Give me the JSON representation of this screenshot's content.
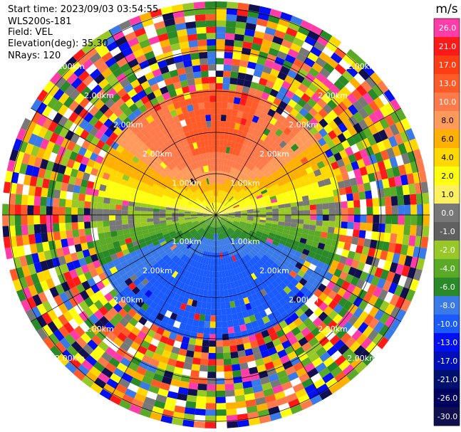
{
  "header": {
    "start_time": "Start time: 2023/09/03 03:54:55",
    "instrument": "WLS200s-181",
    "field": "Field: VEL",
    "elevation": "Elevation(deg): 35.30",
    "nrays": "NRays: 120"
  },
  "colorbar": {
    "unit": "m/s",
    "ticks": [
      "26.0",
      "21.0",
      "17.0",
      "13.0",
      "10.0",
      "8.0",
      "6.0",
      "4.0",
      "2.0",
      "1.0",
      "0.0",
      "-1.0",
      "-2.0",
      "-4.0",
      "-6.0",
      "-8.0",
      "-10.0",
      "-13.0",
      "-17.0",
      "-21.0",
      "-26.0",
      "-30.0"
    ],
    "colors": [
      "#ff3ca8",
      "#ff1a1a",
      "#ff3d14",
      "#ff5a28",
      "#ff7a4a",
      "#ff9a5a",
      "#ffb000",
      "#ffd800",
      "#ffff10",
      "#fff060",
      "#787878",
      "#606060",
      "#98c828",
      "#5aaa28",
      "#2a8a28",
      "#3a7ae8",
      "#1a5aff",
      "#0010f0",
      "#0010b8",
      "#001070",
      "#000060",
      "#101050"
    ]
  },
  "chart_data": {
    "type": "heatmap",
    "projection": "polar (PPI)",
    "field": "VEL",
    "units": "m/s",
    "nrays": 120,
    "range_ring_labels": [
      "1.00km",
      "2.00km"
    ],
    "color_scale_min": -30.0,
    "color_scale_max": 26.0
  }
}
